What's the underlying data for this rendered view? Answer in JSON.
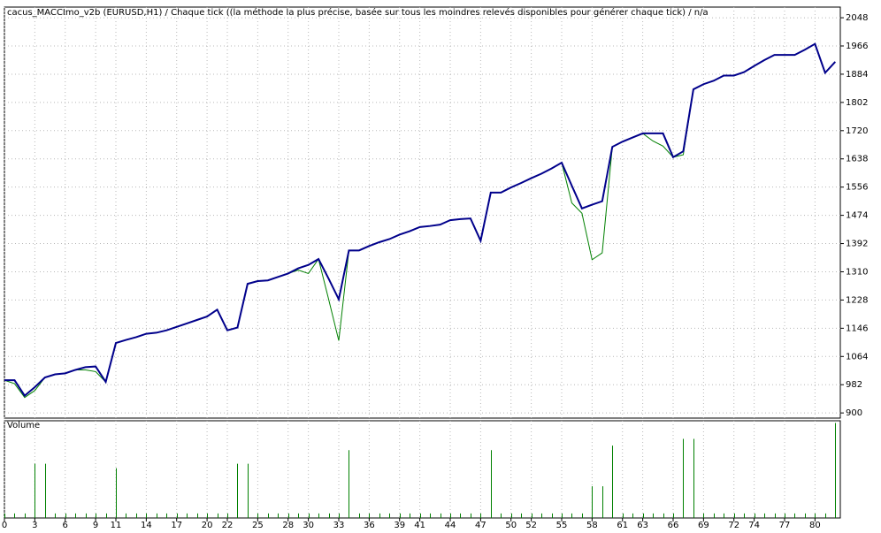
{
  "chart_data": {
    "type": "line",
    "title": "cacus_MACCImo_v2b (EURUSD,H1) / Chaque tick ((la méthode la plus précise, basée sur tous les moindres relevés disponibles pour générer chaque tick) / n/a",
    "x": [
      0,
      1,
      2,
      3,
      4,
      5,
      6,
      7,
      8,
      9,
      10,
      11,
      12,
      13,
      14,
      15,
      16,
      17,
      18,
      19,
      20,
      21,
      22,
      23,
      24,
      25,
      26,
      27,
      28,
      29,
      30,
      31,
      32,
      33,
      34,
      35,
      36,
      37,
      38,
      39,
      40,
      41,
      42,
      43,
      44,
      45,
      46,
      47,
      48,
      49,
      50,
      51,
      52,
      53,
      54,
      55,
      56,
      57,
      58,
      59,
      60,
      61,
      62,
      63,
      64,
      65,
      66,
      67,
      68,
      69,
      70,
      71,
      72,
      73,
      74,
      75,
      76,
      77,
      78,
      79,
      80,
      81,
      82
    ],
    "series": [
      {
        "color": "#00008b",
        "values": [
          995,
          995,
          950,
          975,
          1003,
          1012,
          1015,
          1025,
          1033,
          1035,
          990,
          1103,
          1112,
          1120,
          1130,
          1133,
          1140,
          1150,
          1160,
          1170,
          1180,
          1200,
          1140,
          1148,
          1275,
          1283,
          1285,
          1295,
          1305,
          1320,
          1330,
          1347,
          1290,
          1230,
          1372,
          1372,
          1385,
          1396,
          1405,
          1418,
          1428,
          1440,
          1443,
          1447,
          1460,
          1463,
          1465,
          1400,
          1540,
          1540,
          1555,
          1568,
          1582,
          1595,
          1610,
          1627,
          1560,
          1494,
          1505,
          1515,
          1673,
          1688,
          1700,
          1712,
          1712,
          1712,
          1643,
          1660,
          1840,
          1855,
          1865,
          1880,
          1880,
          1890,
          1908,
          1925,
          1940,
          1940,
          1940,
          1955,
          1972,
          1888,
          1920
        ]
      },
      {
        "color": "#008000",
        "values": [
          995,
          985,
          945,
          965,
          1003,
          1012,
          1015,
          1025,
          1025,
          1020,
          990,
          1103,
          1112,
          1120,
          1130,
          1133,
          1140,
          1150,
          1160,
          1170,
          1180,
          1200,
          1140,
          1148,
          1275,
          1283,
          1285,
          1295,
          1305,
          1315,
          1305,
          1347,
          1230,
          1110,
          1372,
          1372,
          1385,
          1396,
          1405,
          1418,
          1428,
          1440,
          1443,
          1447,
          1460,
          1463,
          1465,
          1400,
          1540,
          1540,
          1555,
          1568,
          1582,
          1595,
          1610,
          1627,
          1510,
          1480,
          1345,
          1365,
          1673,
          1688,
          1700,
          1712,
          1690,
          1675,
          1643,
          1650,
          1840,
          1855,
          1865,
          1880,
          1880,
          1890,
          1908,
          1925,
          1940,
          1940,
          1940,
          1955,
          1972,
          1888,
          1920
        ]
      }
    ],
    "xlim": [
      0,
      82.5
    ],
    "xticks": [
      0,
      3,
      6,
      9,
      11,
      14,
      17,
      20,
      22,
      25,
      28,
      30,
      33,
      36,
      39,
      41,
      44,
      47,
      50,
      52,
      55,
      58,
      61,
      63,
      66,
      69,
      72,
      74,
      77,
      80
    ],
    "ylim": [
      885,
      2079
    ],
    "yticks": [
      900,
      982,
      1064,
      1146,
      1228,
      1310,
      1392,
      1474,
      1556,
      1638,
      1720,
      1802,
      1884,
      1966,
      2048
    ],
    "grid": true,
    "volume": {
      "label": "Volume",
      "color": "#008000",
      "ylim": [
        0,
        21.5
      ],
      "values": [
        1,
        1,
        1,
        12,
        12,
        1,
        1,
        1,
        1,
        1,
        1,
        11,
        1,
        1,
        1,
        1,
        1,
        1,
        1,
        1,
        1,
        1,
        1,
        12,
        12,
        1,
        1,
        1,
        1,
        1,
        1,
        1,
        1,
        1,
        15,
        1,
        1,
        1,
        1,
        1,
        1,
        1,
        1,
        1,
        1,
        1,
        1,
        1,
        15,
        1,
        1,
        1,
        1,
        1,
        1,
        1,
        1,
        1,
        7,
        7,
        16,
        1,
        1,
        1,
        1,
        1,
        1,
        17.5,
        17.5,
        1,
        1,
        1,
        1,
        1,
        1,
        1,
        1,
        1,
        1,
        1,
        1,
        1,
        21
      ]
    }
  }
}
